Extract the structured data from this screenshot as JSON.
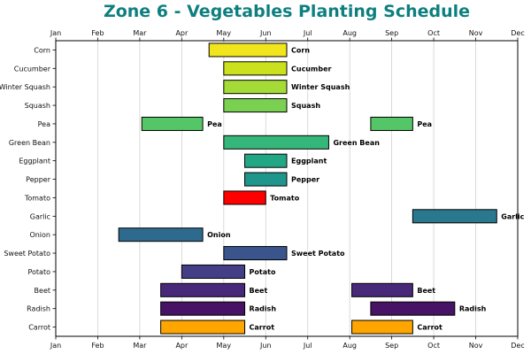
{
  "chart_data": {
    "type": "bar",
    "orientation": "horizontal-gantt",
    "title": "Zone 6 - Vegetables Planting Schedule",
    "title_color": "#0e7f7f",
    "xlabel": "",
    "ylabel": "",
    "x_ticks": [
      "Jan",
      "Feb",
      "Mar",
      "Apr",
      "May",
      "Jun",
      "Jul",
      "Aug",
      "Sep",
      "Oct",
      "Nov",
      "Dec"
    ],
    "xlim": [
      1,
      12
    ],
    "categories": [
      "Corn",
      "Cucumber",
      "Winter Squash",
      "Squash",
      "Pea",
      "Green Bean",
      "Eggplant",
      "Pepper",
      "Tomato",
      "Garlic",
      "Onion",
      "Sweet Potato",
      "Potato",
      "Beet",
      "Radish",
      "Carrot"
    ],
    "grid": "vertical",
    "ticks_top_and_bottom": true,
    "tasks": [
      {
        "crop": "Corn",
        "color": "#f1e51d",
        "windows": [
          [
            4.65,
            6.5
          ]
        ]
      },
      {
        "crop": "Cucumber",
        "color": "#cce11e",
        "windows": [
          [
            5.0,
            6.5
          ]
        ]
      },
      {
        "crop": "Winter Squash",
        "color": "#a5db36",
        "windows": [
          [
            5.0,
            6.5
          ]
        ]
      },
      {
        "crop": "Squash",
        "color": "#7ad151",
        "windows": [
          [
            5.0,
            6.5
          ]
        ]
      },
      {
        "crop": "Pea",
        "color": "#55c667",
        "windows": [
          [
            3.05,
            4.5
          ],
          [
            8.5,
            9.5
          ]
        ]
      },
      {
        "crop": "Green Bean",
        "color": "#35b779",
        "windows": [
          [
            5.0,
            7.5
          ]
        ]
      },
      {
        "crop": "Eggplant",
        "color": "#22a785",
        "windows": [
          [
            5.5,
            6.5
          ]
        ]
      },
      {
        "crop": "Pepper",
        "color": "#1f968b",
        "windows": [
          [
            5.5,
            6.5
          ]
        ]
      },
      {
        "crop": "Tomato",
        "color": "#ff0000",
        "windows": [
          [
            5.0,
            6.0
          ]
        ]
      },
      {
        "crop": "Garlic",
        "color": "#2a788e",
        "windows": [
          [
            9.5,
            11.5
          ]
        ]
      },
      {
        "crop": "Onion",
        "color": "#2e6a8e",
        "windows": [
          [
            2.5,
            4.5
          ]
        ]
      },
      {
        "crop": "Sweet Potato",
        "color": "#39558c",
        "windows": [
          [
            5.0,
            6.5
          ]
        ]
      },
      {
        "crop": "Potato",
        "color": "#433e85",
        "windows": [
          [
            4.0,
            5.5
          ]
        ]
      },
      {
        "crop": "Beet",
        "color": "#482878",
        "windows": [
          [
            3.5,
            5.5
          ],
          [
            8.05,
            9.5
          ]
        ]
      },
      {
        "crop": "Radish",
        "color": "#471365",
        "windows": [
          [
            3.5,
            5.5
          ],
          [
            8.5,
            10.5
          ]
        ]
      },
      {
        "crop": "Carrot",
        "color": "#ffa500",
        "windows": [
          [
            3.5,
            5.5
          ],
          [
            8.05,
            9.5
          ]
        ]
      }
    ]
  }
}
